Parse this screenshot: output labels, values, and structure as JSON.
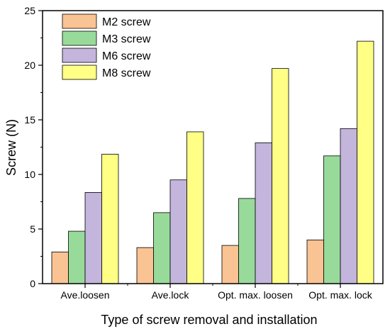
{
  "chart_data": {
    "type": "bar",
    "categories": [
      "Ave.loosen",
      "Ave.lock",
      "Opt. max. loosen",
      "Opt. max. lock"
    ],
    "series": [
      {
        "name": "M2 screw",
        "values": [
          2.9,
          3.3,
          3.5,
          4.0
        ]
      },
      {
        "name": "M3 screw",
        "values": [
          4.8,
          6.5,
          7.8,
          11.7
        ]
      },
      {
        "name": "M6 screw",
        "values": [
          8.35,
          9.5,
          12.9,
          14.2
        ]
      },
      {
        "name": "M8 screw",
        "values": [
          11.85,
          13.9,
          19.7,
          22.2
        ]
      }
    ],
    "title": "",
    "xlabel": "Type of screw removal and installation",
    "ylabel": "Screw (N)",
    "ylim": [
      0,
      25
    ],
    "yticks": [
      "0",
      "5",
      "10",
      "15",
      "20",
      "25"
    ],
    "grid": false,
    "legend_position": "top-left"
  },
  "colors": {
    "M2 screw": "#fac393",
    "M3 screw": "#98da9a",
    "M6 screw": "#c3b5dc",
    "M8 screw": "#ffff85",
    "axis": "#000000"
  }
}
